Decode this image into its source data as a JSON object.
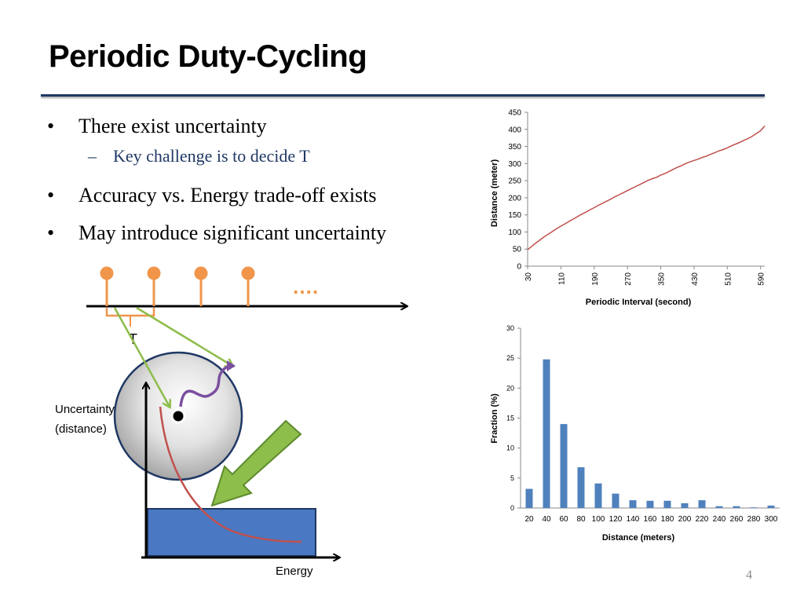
{
  "slide": {
    "title": "Periodic Duty-Cycling",
    "page_number": "4"
  },
  "bullets": [
    {
      "text": "There exist uncertainty",
      "sub": "Key challenge is to decide T"
    },
    {
      "text": "Accuracy vs.  Energy trade-off exists"
    },
    {
      "text": "May introduce significant uncertainty"
    }
  ],
  "diagram": {
    "dots_label": "….",
    "period_label": "T",
    "y_axis_label_line1": "Uncertainty",
    "y_axis_label_line2": "(distance)",
    "x_axis_label": "Energy",
    "colors": {
      "orange": "#f0954a",
      "green": "#8dbd4a",
      "purple": "#7b4fa0",
      "blue": "#4a78c2",
      "red": "#c0504d"
    }
  },
  "chart_data": [
    {
      "type": "line",
      "xlabel": "Periodic Interval (second)",
      "ylabel": "Distance (meter)",
      "x_tick_labels": [
        "30",
        "110",
        "190",
        "270",
        "350",
        "430",
        "510",
        "590"
      ],
      "y_tick_labels": [
        "0",
        "50",
        "100",
        "150",
        "200",
        "250",
        "300",
        "350",
        "400",
        "450"
      ],
      "xlim": [
        30,
        600
      ],
      "ylim": [
        0,
        450
      ],
      "color": "#c0504d",
      "x": [
        30,
        40,
        50,
        60,
        70,
        80,
        90,
        100,
        110,
        120,
        130,
        140,
        150,
        160,
        170,
        180,
        190,
        200,
        210,
        220,
        230,
        240,
        250,
        260,
        270,
        280,
        290,
        300,
        310,
        320,
        330,
        340,
        350,
        360,
        370,
        380,
        390,
        400,
        410,
        420,
        430,
        440,
        450,
        460,
        470,
        480,
        490,
        500,
        510,
        520,
        530,
        540,
        550,
        560,
        570,
        580,
        590,
        600
      ],
      "y": [
        48,
        58,
        68,
        77,
        86,
        94,
        102,
        110,
        117,
        124,
        131,
        138,
        145,
        152,
        158,
        165,
        171,
        178,
        184,
        190,
        196,
        203,
        209,
        215,
        221,
        227,
        233,
        239,
        245,
        251,
        256,
        260,
        266,
        271,
        277,
        283,
        289,
        294,
        300,
        305,
        309,
        313,
        318,
        322,
        327,
        332,
        337,
        341,
        346,
        352,
        357,
        362,
        368,
        373,
        380,
        388,
        396,
        410
      ]
    },
    {
      "type": "bar",
      "xlabel": "Distance (meters)",
      "ylabel": "Fraction (%)",
      "categories": [
        "20",
        "40",
        "60",
        "80",
        "100",
        "120",
        "140",
        "160",
        "180",
        "200",
        "220",
        "240",
        "260",
        "280",
        "300"
      ],
      "values": [
        3.2,
        24.8,
        14.0,
        6.8,
        4.1,
        2.4,
        1.3,
        1.2,
        1.2,
        0.8,
        1.3,
        0.3,
        0.3,
        0.1,
        0.4
      ],
      "y_tick_labels": [
        "0",
        "5",
        "10",
        "15",
        "20",
        "25",
        "30"
      ],
      "ylim": [
        0,
        30
      ],
      "color": "#4f81bd"
    }
  ]
}
